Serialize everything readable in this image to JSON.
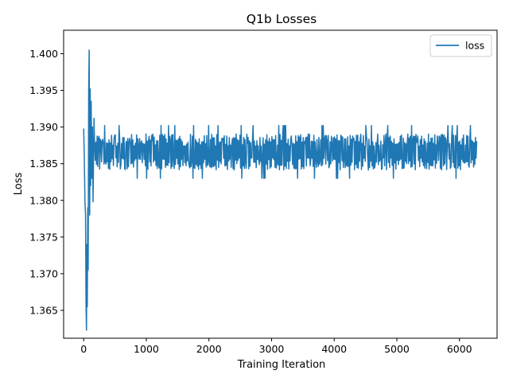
{
  "chart_data": {
    "type": "line",
    "title": "Q1b Losses",
    "xlabel": "Training Iteration",
    "ylabel": "Loss",
    "xlim": [
      -320,
      6600
    ],
    "ylim": [
      1.3612,
      1.4032
    ],
    "xticks": [
      0,
      1000,
      2000,
      3000,
      4000,
      5000,
      6000
    ],
    "yticks": [
      1.365,
      1.37,
      1.375,
      1.38,
      1.385,
      1.39,
      1.395,
      1.4
    ],
    "xtick_labels": [
      "0",
      "1000",
      "2000",
      "3000",
      "4000",
      "5000",
      "6000"
    ],
    "ytick_labels": [
      "1.365",
      "1.370",
      "1.375",
      "1.380",
      "1.385",
      "1.390",
      "1.395",
      "1.400"
    ],
    "grid": false,
    "legend": {
      "position": "top-right",
      "entries": [
        "loss"
      ]
    },
    "color": "#1f77b4",
    "series": [
      {
        "name": "loss",
        "x_start": 0,
        "x_end": 6280,
        "center": 1.3866,
        "spread_min": 1.3845,
        "spread_max": 1.389,
        "key_points": [
          {
            "x": 0,
            "y": 1.3898
          },
          {
            "x": 10,
            "y": 1.386
          },
          {
            "x": 20,
            "y": 1.38
          },
          {
            "x": 30,
            "y": 1.378
          },
          {
            "x": 38,
            "y": 1.3653
          },
          {
            "x": 45,
            "y": 1.3623
          },
          {
            "x": 52,
            "y": 1.374
          },
          {
            "x": 58,
            "y": 1.3655
          },
          {
            "x": 65,
            "y": 1.379
          },
          {
            "x": 72,
            "y": 1.3705
          },
          {
            "x": 80,
            "y": 1.395
          },
          {
            "x": 88,
            "y": 1.4005
          },
          {
            "x": 96,
            "y": 1.378
          },
          {
            "x": 104,
            "y": 1.3952
          },
          {
            "x": 112,
            "y": 1.382
          },
          {
            "x": 120,
            "y": 1.3935
          },
          {
            "x": 130,
            "y": 1.383
          },
          {
            "x": 140,
            "y": 1.39
          },
          {
            "x": 150,
            "y": 1.3798
          },
          {
            "x": 165,
            "y": 1.3912
          }
        ],
        "peaks": [
          {
            "x": 380,
            "y": 1.3937
          },
          {
            "x": 900,
            "y": 1.3941
          },
          {
            "x": 1280,
            "y": 1.392
          },
          {
            "x": 1700,
            "y": 1.3922
          },
          {
            "x": 1870,
            "y": 1.3935
          },
          {
            "x": 2230,
            "y": 1.3935
          },
          {
            "x": 2370,
            "y": 1.393
          },
          {
            "x": 2960,
            "y": 1.392
          },
          {
            "x": 3390,
            "y": 1.3926
          },
          {
            "x": 3800,
            "y": 1.3918
          },
          {
            "x": 4200,
            "y": 1.3922
          },
          {
            "x": 4480,
            "y": 1.3934
          },
          {
            "x": 5450,
            "y": 1.3918
          },
          {
            "x": 5750,
            "y": 1.3922
          }
        ],
        "troughs": [
          {
            "x": 390,
            "y": 1.3815
          },
          {
            "x": 900,
            "y": 1.3808
          },
          {
            "x": 1760,
            "y": 1.3822
          },
          {
            "x": 2350,
            "y": 1.3825
          },
          {
            "x": 3670,
            "y": 1.3804
          },
          {
            "x": 4080,
            "y": 1.3807
          },
          {
            "x": 4650,
            "y": 1.3822
          },
          {
            "x": 5620,
            "y": 1.3823
          },
          {
            "x": 6200,
            "y": 1.3824
          }
        ]
      }
    ]
  }
}
